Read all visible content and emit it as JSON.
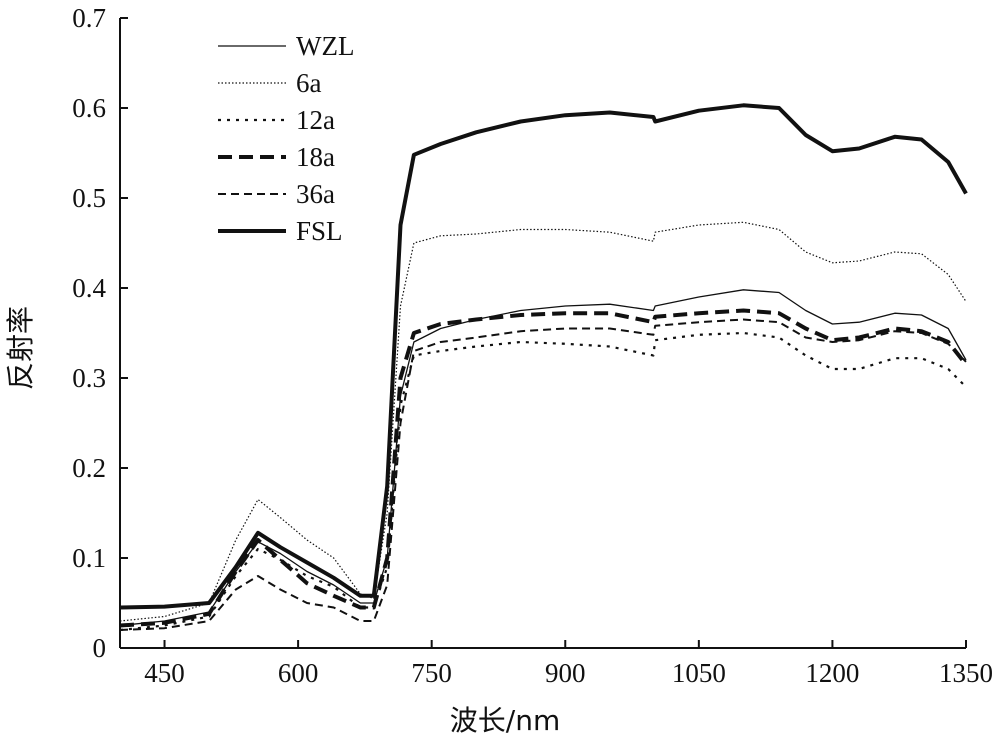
{
  "chart_data": {
    "type": "line",
    "title": "",
    "xlabel": "波长/nm",
    "ylabel": "反射率",
    "xlim": [
      400,
      1350
    ],
    "ylim": [
      0,
      0.7
    ],
    "x_ticks": [
      450,
      600,
      750,
      900,
      1050,
      1200,
      1350
    ],
    "y_ticks": [
      0,
      0.1,
      0.2,
      0.3,
      0.4,
      0.5,
      0.6,
      0.7
    ],
    "y_tick_labels": [
      "0",
      "0.1",
      "0.2",
      "0.3",
      "0.4",
      "0.5",
      "0.6",
      "0.7"
    ],
    "grid": false,
    "legend_position": "top-left",
    "x": [
      400,
      450,
      500,
      530,
      555,
      580,
      610,
      640,
      670,
      685,
      700,
      715,
      730,
      760,
      800,
      850,
      900,
      950,
      999,
      1001,
      1050,
      1100,
      1140,
      1170,
      1200,
      1230,
      1270,
      1300,
      1330,
      1350
    ],
    "series": [
      {
        "name": "WZL",
        "style": "solid-thin",
        "values": [
          0.025,
          0.03,
          0.04,
          0.085,
          0.118,
          0.105,
          0.085,
          0.07,
          0.05,
          0.05,
          0.1,
          0.28,
          0.34,
          0.355,
          0.365,
          0.375,
          0.38,
          0.382,
          0.375,
          0.38,
          0.39,
          0.398,
          0.395,
          0.375,
          0.36,
          0.362,
          0.372,
          0.37,
          0.355,
          0.32
        ]
      },
      {
        "name": "6a",
        "style": "dotted-thin",
        "values": [
          0.03,
          0.035,
          0.05,
          0.12,
          0.165,
          0.145,
          0.12,
          0.1,
          0.06,
          0.055,
          0.15,
          0.38,
          0.45,
          0.458,
          0.46,
          0.465,
          0.465,
          0.462,
          0.452,
          0.462,
          0.47,
          0.473,
          0.465,
          0.44,
          0.428,
          0.43,
          0.44,
          0.438,
          0.415,
          0.385
        ]
      },
      {
        "name": "12a",
        "style": "dotted",
        "values": [
          0.02,
          0.025,
          0.035,
          0.08,
          0.11,
          0.098,
          0.08,
          0.068,
          0.045,
          0.045,
          0.09,
          0.27,
          0.325,
          0.33,
          0.335,
          0.34,
          0.338,
          0.335,
          0.325,
          0.342,
          0.348,
          0.35,
          0.345,
          0.325,
          0.31,
          0.31,
          0.322,
          0.322,
          0.31,
          0.29
        ]
      },
      {
        "name": "18a",
        "style": "long-dash",
        "values": [
          0.025,
          0.028,
          0.038,
          0.085,
          0.12,
          0.098,
          0.072,
          0.058,
          0.045,
          0.045,
          0.1,
          0.3,
          0.35,
          0.36,
          0.365,
          0.37,
          0.372,
          0.372,
          0.362,
          0.368,
          0.372,
          0.375,
          0.372,
          0.355,
          0.342,
          0.345,
          0.355,
          0.352,
          0.34,
          0.315
        ]
      },
      {
        "name": "36a",
        "style": "dash",
        "values": [
          0.02,
          0.022,
          0.03,
          0.065,
          0.08,
          0.065,
          0.05,
          0.045,
          0.03,
          0.03,
          0.07,
          0.25,
          0.33,
          0.34,
          0.345,
          0.352,
          0.355,
          0.355,
          0.348,
          0.358,
          0.362,
          0.365,
          0.362,
          0.345,
          0.34,
          0.342,
          0.352,
          0.35,
          0.338,
          0.318
        ]
      },
      {
        "name": "FSL",
        "style": "solid-bold",
        "values": [
          0.045,
          0.046,
          0.05,
          0.09,
          0.128,
          0.112,
          0.095,
          0.078,
          0.058,
          0.058,
          0.18,
          0.47,
          0.548,
          0.56,
          0.573,
          0.585,
          0.592,
          0.595,
          0.59,
          0.585,
          0.597,
          0.603,
          0.6,
          0.57,
          0.552,
          0.555,
          0.568,
          0.565,
          0.54,
          0.505
        ]
      }
    ]
  }
}
